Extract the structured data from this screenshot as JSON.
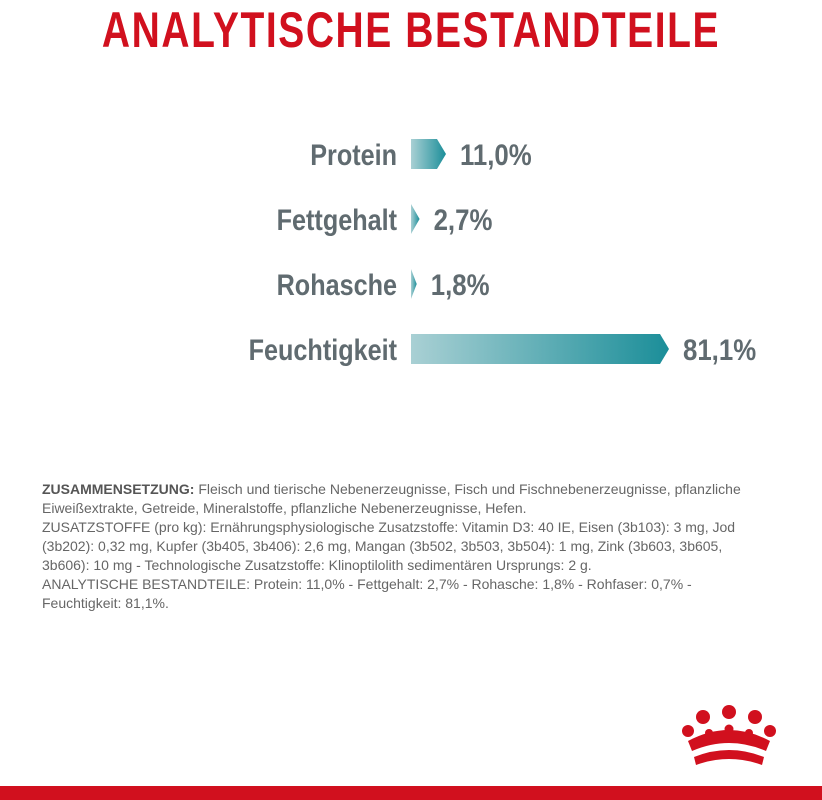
{
  "page": {
    "title": "ANALYTISCHE BESTANDTEILE"
  },
  "chart_data": {
    "type": "bar",
    "orientation": "horizontal",
    "categories": [
      "Protein",
      "Fettgehalt",
      "Rohasche",
      "Feuchtigkeit"
    ],
    "values": [
      11.0,
      2.7,
      1.8,
      81.1
    ],
    "value_labels": [
      "11,0%",
      "2,7%",
      "1,8%",
      "81,1%"
    ],
    "unit": "%",
    "xlim": [
      0,
      100
    ],
    "grid": false,
    "colors": {
      "bar_start": "#a9d0d4",
      "bar_end": "#1b8e99",
      "label": "#606b70"
    }
  },
  "composition": {
    "heading": "ZUSAMMENSETZUNG:",
    "body": "Fleisch und tierische Nebenerzeugnisse, Fisch und Fischnebenerzeugnisse, pflanzliche Eiweißextrakte, Getreide, Mineralstoffe, pflanzliche Nebenerzeugnisse, Hefen.",
    "additives": "ZUSATZSTOFFE (pro kg): Ernährungsphysiologische Zusatzstoffe: Vitamin D3: 40 IE, Eisen (3b103): 3 mg, Jod (3b202): 0,32 mg, Kupfer (3b405, 3b406): 2,6 mg, Mangan (3b502, 3b503, 3b504): 1 mg, Zink (3b603, 3b605, 3b606): 10 mg - Technologische Zusatzstoffe: Klinoptilolith sedimentären Ursprungs: 2 g.",
    "analysis": "ANALYTISCHE BESTANDTEILE: Protein: 11,0% - Fettgehalt: 2,7% - Rohasche: 1,8% - Rohfaser: 0,7% - Feuchtigkeit: 81,1%."
  },
  "brand": {
    "logo_icon": "crown-icon",
    "accent_color": "#d1101e"
  }
}
